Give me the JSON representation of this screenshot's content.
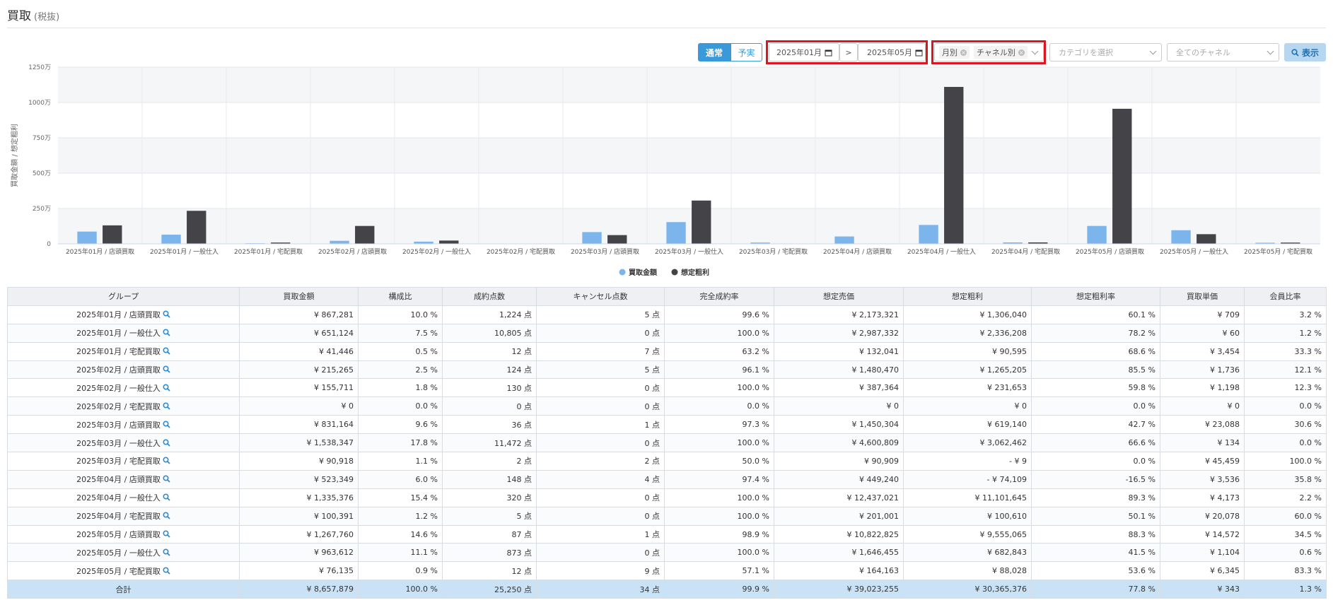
{
  "header": {
    "title": "買取",
    "subtitle": "(税抜)"
  },
  "controls": {
    "mode_buttons": [
      "通常",
      "予実"
    ],
    "date_from": "2025年01月",
    "date_separator": ">",
    "date_to": "2025年05月",
    "group_tags": [
      "月別",
      "チャネル別"
    ],
    "category_placeholder": "カテゴリを選択",
    "channel_placeholder": "全てのチャネル",
    "submit": "表示"
  },
  "chart_data": {
    "type": "bar",
    "y_label": "買取金額 / 想定粗利",
    "categories": [
      "2025年01月 / 店頭買取",
      "2025年01月 / 一般仕入",
      "2025年01月 / 宅配買取",
      "2025年02月 / 店頭買取",
      "2025年02月 / 一般仕入",
      "2025年02月 / 宅配買取",
      "2025年03月 / 店頭買取",
      "2025年03月 / 一般仕入",
      "2025年03月 / 宅配買取",
      "2025年04月 / 店頭買取",
      "2025年04月 / 一般仕入",
      "2025年04月 / 宅配買取",
      "2025年05月 / 店頭買取",
      "2025年05月 / 一般仕入",
      "2025年05月 / 宅配買取"
    ],
    "series": [
      {
        "name": "買取金額",
        "color": "#7cb5ec",
        "values": [
          86.7281,
          65.1124,
          4.1446,
          21.5265,
          15.5711,
          0,
          83.1164,
          153.8347,
          9.0918,
          52.3349,
          133.5376,
          10.0391,
          126.776,
          96.3612,
          7.6135
        ]
      },
      {
        "name": "想定粗利",
        "color": "#434348",
        "values": [
          130.604,
          233.6208,
          9.0595,
          126.5205,
          23.1653,
          0,
          61.914,
          306.2462,
          -0.0009,
          -7.4109,
          1110.1645,
          10.061,
          955.5065,
          68.2843,
          8.8028
        ]
      }
    ],
    "ylim": [
      0,
      1250
    ],
    "yticks": [
      0,
      {
        "value": 250,
        "label": "250万"
      },
      {
        "value": 500,
        "label": "500万"
      },
      {
        "value": 750,
        "label": "750万"
      },
      {
        "value": 1000,
        "label": "1000万"
      },
      {
        "value": 1250,
        "label": "1250万"
      }
    ],
    "legend": "bottom"
  },
  "table": {
    "headers": [
      "グループ",
      "買取金額",
      "構成比",
      "成約点数",
      "キャンセル点数",
      "完全成約率",
      "想定売価",
      "想定粗利",
      "想定粗利率",
      "買取単価",
      "会員比率"
    ],
    "rows": [
      [
        "2025年01月 / 店頭買取",
        "¥ 867,281",
        "10.0 %",
        "1,224 点",
        "5 点",
        "99.6 %",
        "¥ 2,173,321",
        "¥ 1,306,040",
        "60.1 %",
        "¥ 709",
        "3.2 %"
      ],
      [
        "2025年01月 / 一般仕入",
        "¥ 651,124",
        "7.5 %",
        "10,805 点",
        "0 点",
        "100.0 %",
        "¥ 2,987,332",
        "¥ 2,336,208",
        "78.2 %",
        "¥ 60",
        "1.2 %"
      ],
      [
        "2025年01月 / 宅配買取",
        "¥ 41,446",
        "0.5 %",
        "12 点",
        "7 点",
        "63.2 %",
        "¥ 132,041",
        "¥ 90,595",
        "68.6 %",
        "¥ 3,454",
        "33.3 %"
      ],
      [
        "2025年02月 / 店頭買取",
        "¥ 215,265",
        "2.5 %",
        "124 点",
        "5 点",
        "96.1 %",
        "¥ 1,480,470",
        "¥ 1,265,205",
        "85.5 %",
        "¥ 1,736",
        "12.1 %"
      ],
      [
        "2025年02月 / 一般仕入",
        "¥ 155,711",
        "1.8 %",
        "130 点",
        "0 点",
        "100.0 %",
        "¥ 387,364",
        "¥ 231,653",
        "59.8 %",
        "¥ 1,198",
        "12.3 %"
      ],
      [
        "2025年02月 / 宅配買取",
        "¥ 0",
        "0.0 %",
        "0 点",
        "0 点",
        "0.0 %",
        "¥ 0",
        "¥ 0",
        "0.0 %",
        "¥ 0",
        "0.0 %"
      ],
      [
        "2025年03月 / 店頭買取",
        "¥ 831,164",
        "9.6 %",
        "36 点",
        "1 点",
        "97.3 %",
        "¥ 1,450,304",
        "¥ 619,140",
        "42.7 %",
        "¥ 23,088",
        "30.6 %"
      ],
      [
        "2025年03月 / 一般仕入",
        "¥ 1,538,347",
        "17.8 %",
        "11,472 点",
        "0 点",
        "100.0 %",
        "¥ 4,600,809",
        "¥ 3,062,462",
        "66.6 %",
        "¥ 134",
        "0.0 %"
      ],
      [
        "2025年03月 / 宅配買取",
        "¥ 90,918",
        "1.1 %",
        "2 点",
        "2 点",
        "50.0 %",
        "¥ 90,909",
        "- ¥ 9",
        "0.0 %",
        "¥ 45,459",
        "100.0 %"
      ],
      [
        "2025年04月 / 店頭買取",
        "¥ 523,349",
        "6.0 %",
        "148 点",
        "4 点",
        "97.4 %",
        "¥ 449,240",
        "- ¥ 74,109",
        "-16.5 %",
        "¥ 3,536",
        "35.8 %"
      ],
      [
        "2025年04月 / 一般仕入",
        "¥ 1,335,376",
        "15.4 %",
        "320 点",
        "0 点",
        "100.0 %",
        "¥ 12,437,021",
        "¥ 11,101,645",
        "89.3 %",
        "¥ 4,173",
        "2.2 %"
      ],
      [
        "2025年04月 / 宅配買取",
        "¥ 100,391",
        "1.2 %",
        "5 点",
        "0 点",
        "100.0 %",
        "¥ 201,001",
        "¥ 100,610",
        "50.1 %",
        "¥ 20,078",
        "60.0 %"
      ],
      [
        "2025年05月 / 店頭買取",
        "¥ 1,267,760",
        "14.6 %",
        "87 点",
        "1 点",
        "98.9 %",
        "¥ 10,822,825",
        "¥ 9,555,065",
        "88.3 %",
        "¥ 14,572",
        "34.5 %"
      ],
      [
        "2025年05月 / 一般仕入",
        "¥ 963,612",
        "11.1 %",
        "873 点",
        "0 点",
        "100.0 %",
        "¥ 1,646,455",
        "¥ 682,843",
        "41.5 %",
        "¥ 1,104",
        "0.6 %"
      ],
      [
        "2025年05月 / 宅配買取",
        "¥ 76,135",
        "0.9 %",
        "12 点",
        "9 点",
        "57.1 %",
        "¥ 164,163",
        "¥ 88,028",
        "53.6 %",
        "¥ 6,345",
        "83.3 %"
      ]
    ],
    "total": [
      "合計",
      "¥ 8,657,879",
      "100.0 %",
      "25,250 点",
      "34 点",
      "99.9 %",
      "¥ 39,023,255",
      "¥ 30,365,376",
      "77.8 %",
      "¥ 343",
      "1.3 %"
    ]
  }
}
